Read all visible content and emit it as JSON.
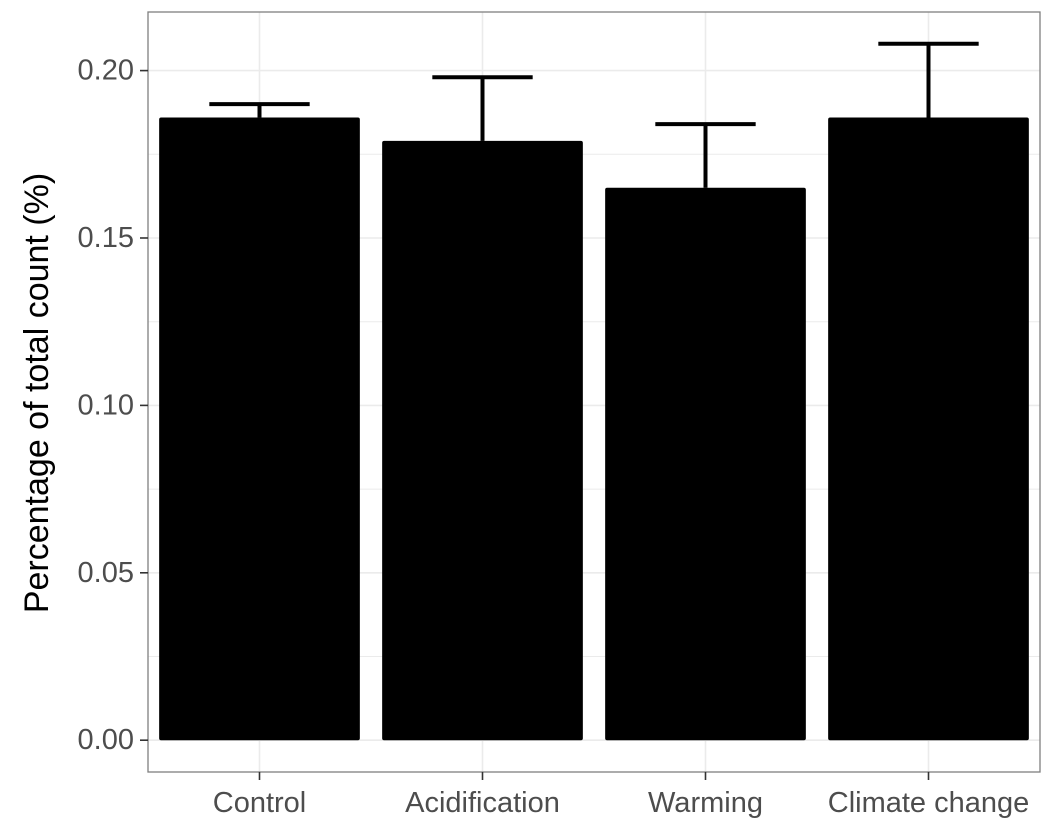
{
  "chart_data": {
    "type": "bar",
    "title": "",
    "xlabel": "",
    "ylabel": "Percentage of total count (%)",
    "categories": [
      "Control",
      "Acidification",
      "Warming",
      "Climate change"
    ],
    "values": [
      0.186,
      0.179,
      0.165,
      0.186
    ],
    "error_upper": [
      0.19,
      0.198,
      0.184,
      0.208
    ],
    "ylim": [
      -0.0095,
      0.2175
    ],
    "yticks": [
      0.0,
      0.05,
      0.1,
      0.15,
      0.2
    ],
    "ytick_labels": [
      "0.00",
      "0.05",
      "0.10",
      "0.15",
      "0.20"
    ],
    "grid": true,
    "bar_color": "#000000",
    "error_bar_color": "#000000",
    "gridline_color": "#ebebeb",
    "panel_border_color": "#7f7f7f"
  }
}
